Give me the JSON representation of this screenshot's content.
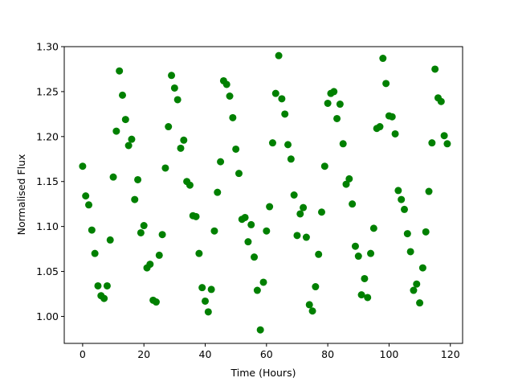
{
  "chart_data": {
    "type": "scatter",
    "title": "",
    "xlabel": "Time (Hours)",
    "ylabel": "Normalised Flux",
    "xlim": [
      -6,
      124
    ],
    "ylim": [
      0.97,
      1.3
    ],
    "xticks": [
      0,
      20,
      40,
      60,
      80,
      100,
      120
    ],
    "yticks": [
      1.0,
      1.05,
      1.1,
      1.15,
      1.2,
      1.25,
      1.3
    ],
    "xtick_labels": [
      "0",
      "20",
      "40",
      "60",
      "80",
      "100",
      "120"
    ],
    "ytick_labels": [
      "1.00",
      "1.05",
      "1.10",
      "1.15",
      "1.20",
      "1.25",
      "1.30"
    ],
    "grid": false,
    "marker_color": "#008000",
    "series": [
      {
        "x": [
          0,
          1,
          2,
          3,
          4,
          5,
          6,
          7,
          8,
          9,
          10,
          11,
          12,
          13,
          14,
          15,
          16,
          17,
          18,
          19,
          20,
          21,
          22,
          23,
          24,
          25,
          26,
          27,
          28,
          29,
          30,
          31,
          32,
          33,
          34,
          35,
          36,
          37,
          38,
          39,
          40,
          41,
          42,
          43,
          44,
          45,
          46,
          47,
          48,
          49,
          50,
          51,
          52,
          53,
          54,
          55,
          56,
          57,
          58,
          59,
          60,
          61,
          62,
          63,
          64,
          65,
          66,
          67,
          68,
          69,
          70,
          71,
          72,
          73,
          74,
          75,
          76,
          77,
          78,
          79,
          80,
          81,
          82,
          83,
          84,
          85,
          86,
          87,
          88,
          89,
          90,
          91,
          92,
          93,
          94,
          95,
          96,
          97,
          98,
          99,
          100,
          101,
          102,
          103,
          104,
          105,
          106,
          107,
          108,
          109,
          110,
          111,
          112,
          113,
          114,
          115,
          116,
          117,
          118,
          119
        ],
        "y": [
          1.167,
          1.134,
          1.124,
          1.096,
          1.07,
          1.034,
          1.023,
          1.02,
          1.034,
          1.085,
          1.155,
          1.206,
          1.273,
          1.246,
          1.219,
          1.19,
          1.197,
          1.13,
          1.152,
          1.093,
          1.101,
          1.054,
          1.058,
          1.018,
          1.016,
          1.068,
          1.091,
          1.165,
          1.211,
          1.268,
          1.254,
          1.241,
          1.187,
          1.196,
          1.15,
          1.146,
          1.112,
          1.111,
          1.07,
          1.032,
          1.017,
          1.005,
          1.03,
          1.095,
          1.138,
          1.172,
          1.262,
          1.258,
          1.245,
          1.221,
          1.186,
          1.159,
          1.108,
          1.11,
          1.083,
          1.102,
          1.066,
          1.029,
          0.985,
          1.038,
          1.095,
          1.122,
          1.193,
          1.248,
          1.29,
          1.242,
          1.225,
          1.191,
          1.175,
          1.135,
          1.09,
          1.114,
          1.121,
          1.088,
          1.013,
          1.006,
          1.033,
          1.069,
          1.116,
          1.167,
          1.237,
          1.248,
          1.25,
          1.22,
          1.236,
          1.192,
          1.147,
          1.153,
          1.125,
          1.078,
          1.067,
          1.024,
          1.042,
          1.021,
          1.07,
          1.098,
          1.209,
          1.211,
          1.287,
          1.259,
          1.223,
          1.222,
          1.203,
          1.14,
          1.13,
          1.119,
          1.092,
          1.072,
          1.029,
          1.036,
          1.015,
          1.054,
          1.094,
          1.139,
          1.193,
          1.275,
          1.243,
          1.239,
          1.201,
          1.192
        ]
      }
    ]
  }
}
